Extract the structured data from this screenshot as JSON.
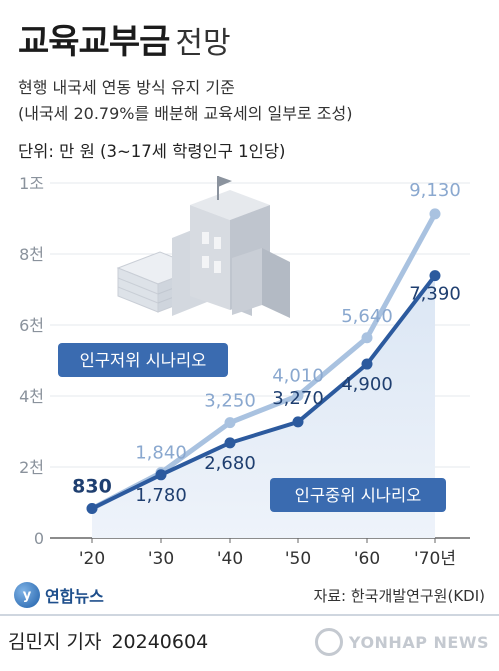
{
  "title": {
    "main": "교육교부금",
    "sub": "전망"
  },
  "subtitle1": "현행 내국세 연동 방식 유지 기준",
  "subtitle2": "(내국세 20.79%를 배분해 교육세의 일부로 조성)",
  "unit": "단위: 만 원 (3~17세 학령인구 1인당)",
  "source": "자료: 한국개발연구원(KDI)",
  "byline": {
    "author": "김민지 기자",
    "date": "20240604"
  },
  "logo": {
    "text": "연합뉴스",
    "icon": "yonhap-logo-icon"
  },
  "watermark": {
    "text": "YONHAP NEWS",
    "icon": "yonhap-watermark-icon"
  },
  "colors": {
    "low_series": "#a9c2e0",
    "mid_series": "#2c5a9e",
    "area_fill": "#e3ebf6",
    "scenario_label_bg": "#3a6bb0"
  },
  "chart_data": {
    "type": "line",
    "categories": [
      "'20",
      "'30",
      "'40",
      "'50",
      "'60",
      "'70년"
    ],
    "ylim": [
      0,
      10000
    ],
    "yticks": [
      {
        "value": 0,
        "label": "0"
      },
      {
        "value": 2000,
        "label": "2천"
      },
      {
        "value": 4000,
        "label": "4천"
      },
      {
        "value": 6000,
        "label": "6천"
      },
      {
        "value": 8000,
        "label": "8천"
      },
      {
        "value": 10000,
        "label": "1조"
      }
    ],
    "series": [
      {
        "name": "인구저위 시나리오",
        "values": [
          830,
          1840,
          3250,
          4010,
          5640,
          9130
        ],
        "labels": [
          "830",
          "1,840",
          "3,250",
          "4,010",
          "5,640",
          "9,130"
        ]
      },
      {
        "name": "인구중위 시나리오",
        "values": [
          830,
          1780,
          2680,
          3270,
          4900,
          7390
        ],
        "labels": [
          "830",
          "1,780",
          "2,680",
          "3,270",
          "4,900",
          "7,390"
        ]
      }
    ]
  }
}
